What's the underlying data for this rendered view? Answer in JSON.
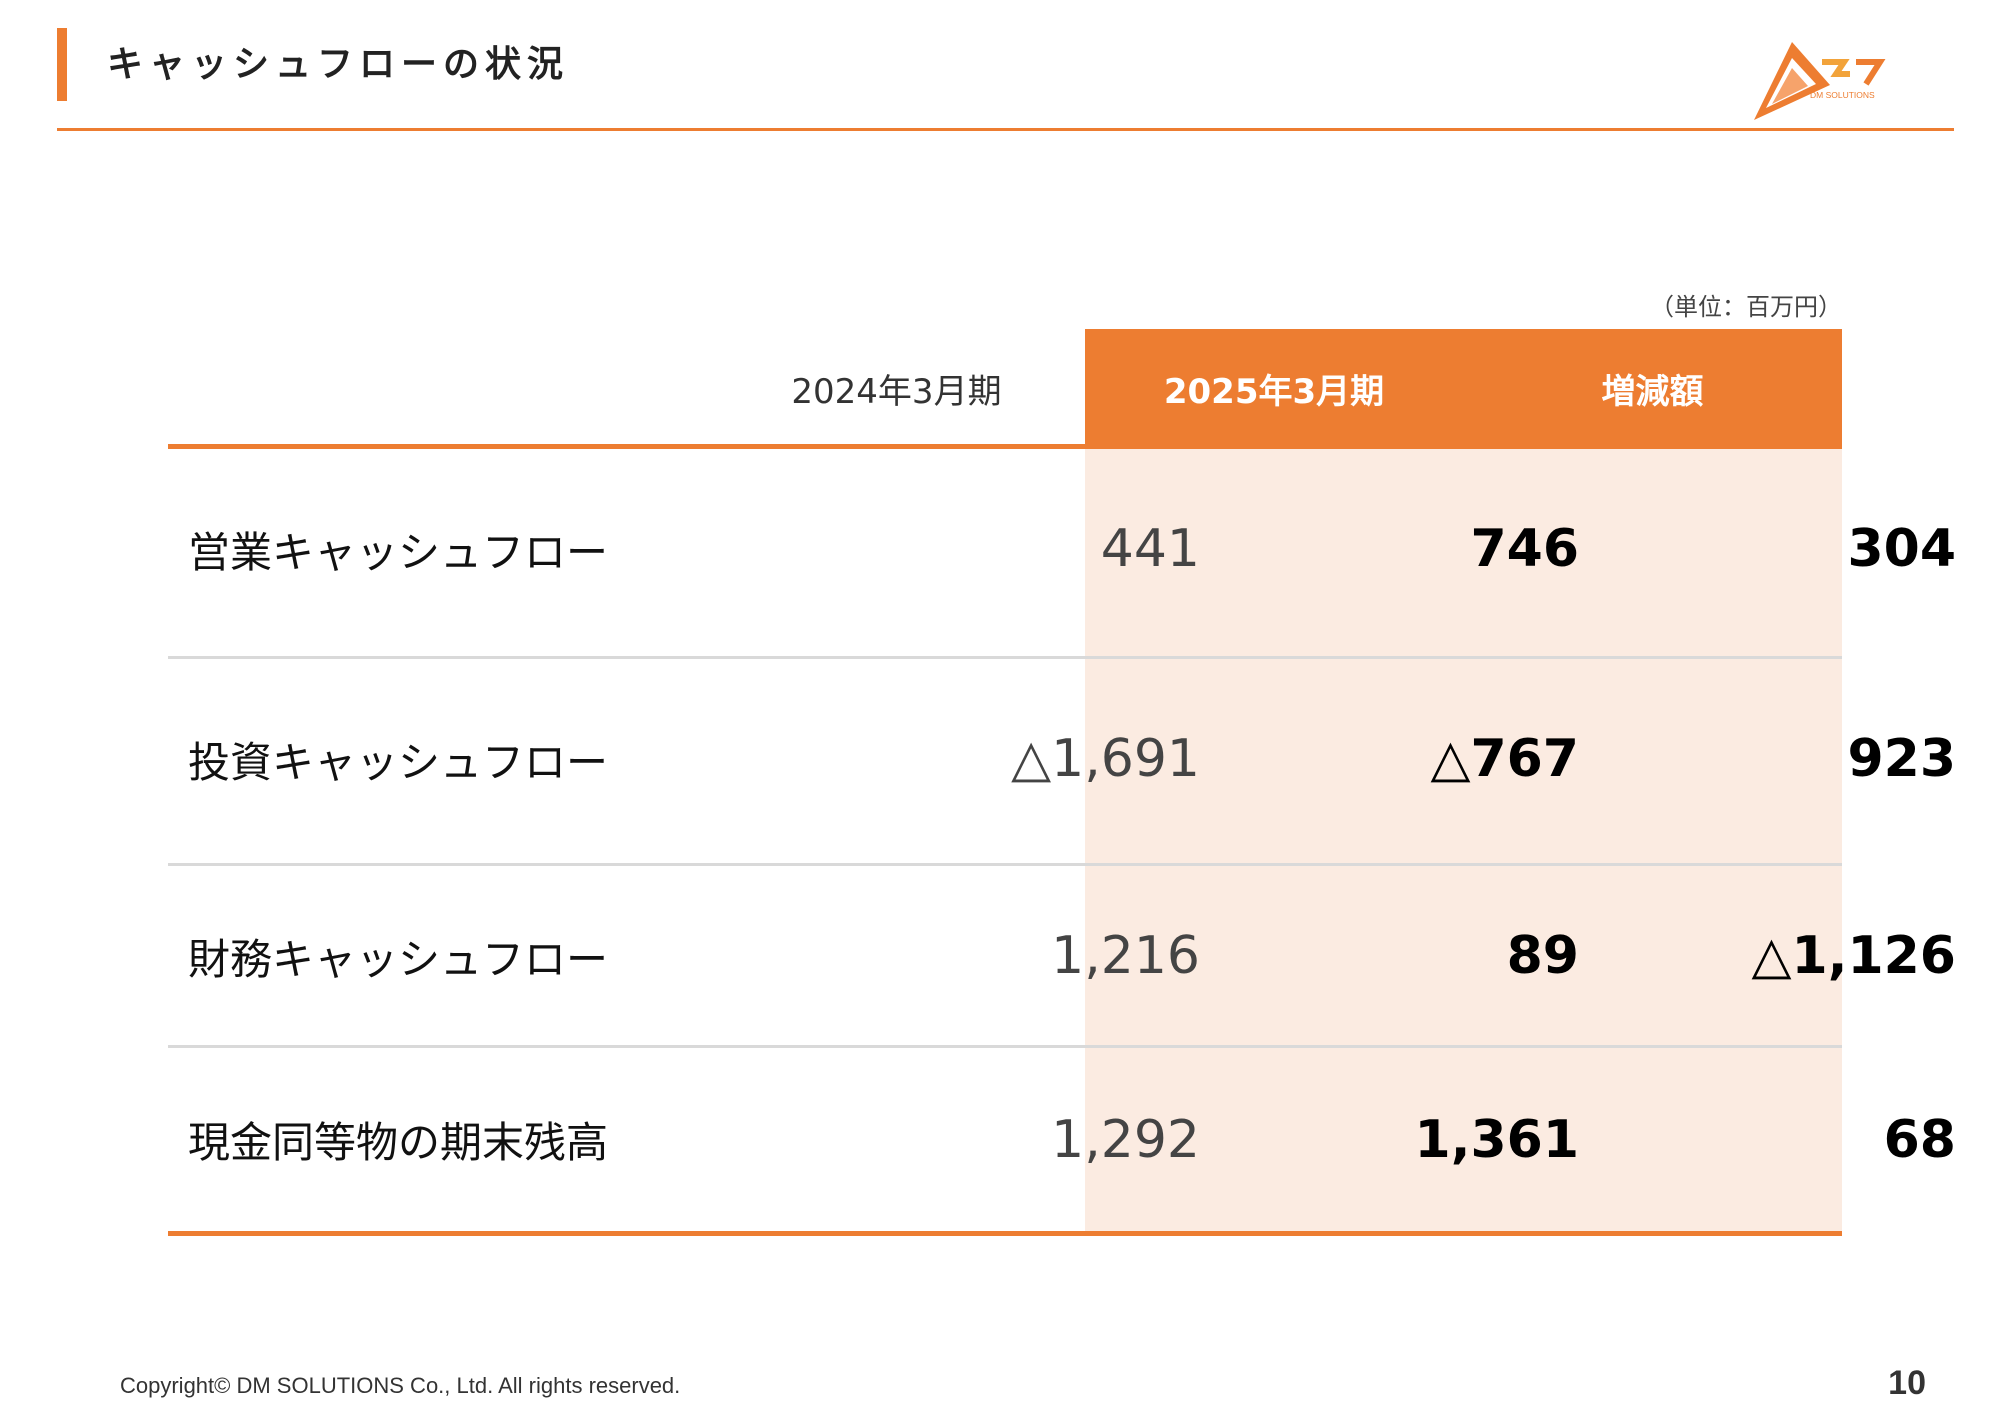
{
  "header": {
    "title": "キャッシュフローの状況",
    "logo_text": "DM SOLUTIONS"
  },
  "unit_note": "（単位：百万円）",
  "colors": {
    "accent": "#ED7D31",
    "highlight_bg": "#FBEBE1",
    "separator": "#D9D9D9"
  },
  "table": {
    "columns": [
      "",
      "2024年3月期",
      "2025年3月期",
      "増減額"
    ],
    "rows": [
      {
        "label": "営業キャッシュフロー",
        "prev": "441",
        "cur": "746",
        "diff": "304"
      },
      {
        "label": "投資キャッシュフロー",
        "prev": "△1,691",
        "cur": "△767",
        "diff": "923"
      },
      {
        "label": "財務キャッシュフロー",
        "prev": "1,216",
        "cur": "89",
        "diff": "△1,126"
      },
      {
        "label": "現金同等物の期末残高",
        "prev": "1,292",
        "cur": "1,361",
        "diff": "68"
      }
    ]
  },
  "footer": {
    "copyright": "Copyright© DM SOLUTIONS Co., Ltd. All rights reserved.",
    "page_number": "10"
  }
}
